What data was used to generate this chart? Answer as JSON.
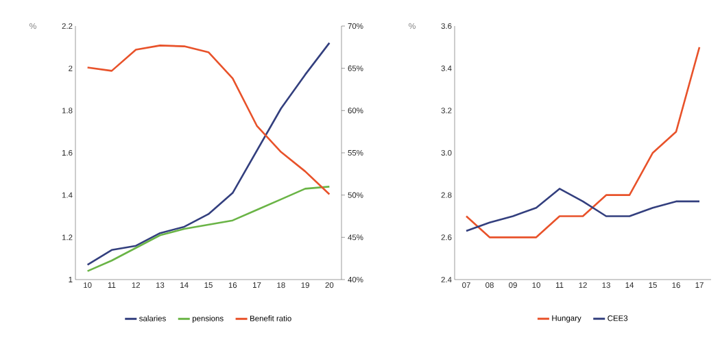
{
  "chart_data": [
    {
      "type": "line",
      "categories": [
        "10",
        "11",
        "12",
        "13",
        "14",
        "15",
        "16",
        "17",
        "18",
        "19",
        "20"
      ],
      "ylabel": "%",
      "ylim": [
        1,
        2.2
      ],
      "yticks": [
        1,
        1.2,
        1.4,
        1.6,
        1.8,
        2,
        2.2
      ],
      "y2lim": [
        40,
        70
      ],
      "y2ticks": [
        {
          "value": 40,
          "label": "40%"
        },
        {
          "value": 45,
          "label": "45%"
        },
        {
          "value": 50,
          "label": "50%"
        },
        {
          "value": 55,
          "label": "55%"
        },
        {
          "value": 60,
          "label": "60%"
        },
        {
          "value": 65,
          "label": "65%"
        },
        {
          "value": 70,
          "label": "70%"
        }
      ],
      "legend": "bottom",
      "series": [
        {
          "name": "salaries",
          "color": "#333f7e",
          "values": [
            1.07,
            1.14,
            1.16,
            1.22,
            1.25,
            1.31,
            1.41,
            1.61,
            1.81,
            1.97,
            2.12
          ]
        },
        {
          "name": "pensions",
          "color": "#6ab446",
          "values": [
            1.04,
            1.09,
            1.15,
            1.21,
            1.24,
            1.26,
            1.28,
            1.33,
            1.38,
            1.43,
            1.44
          ]
        },
        {
          "name": "Benefit ratio",
          "color": "#e8522a",
          "axis": "y2",
          "values": [
            65.1,
            64.7,
            67.2,
            67.7,
            67.6,
            66.9,
            63.8,
            58.2,
            55.1,
            52.8,
            50.1
          ]
        }
      ]
    },
    {
      "type": "line",
      "categories": [
        "07",
        "08",
        "09",
        "10",
        "11",
        "12",
        "13",
        "14",
        "15",
        "16",
        "17"
      ],
      "ylabel": "%",
      "ylim": [
        2.4,
        3.6
      ],
      "yticks": [
        2.4,
        2.6,
        2.8,
        {
          "value": 3,
          "label": "3.0"
        },
        3.2,
        3.4,
        3.6
      ],
      "legend": "bottom",
      "series": [
        {
          "name": "Hungary",
          "color": "#e8522a",
          "values": [
            2.7,
            2.6,
            2.6,
            2.6,
            2.7,
            2.7,
            2.8,
            2.8,
            3.0,
            3.1,
            3.5
          ]
        },
        {
          "name": "CEE3",
          "color": "#333f7e",
          "values": [
            2.63,
            2.67,
            2.7,
            2.74,
            2.83,
            2.77,
            2.7,
            2.7,
            2.74,
            2.77,
            2.77
          ]
        }
      ]
    }
  ]
}
